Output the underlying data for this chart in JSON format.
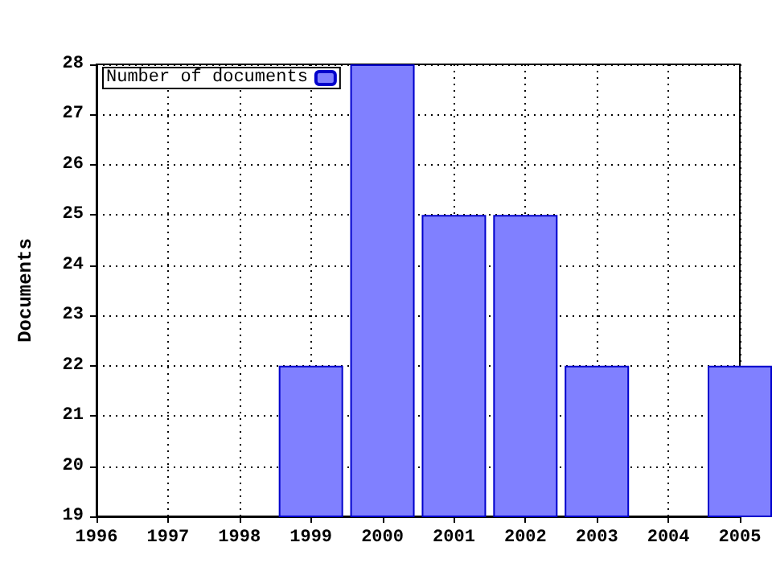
{
  "chart_data": {
    "type": "bar",
    "ylabel": "Documents",
    "x": [
      1999,
      2000,
      2001,
      2002,
      2003,
      2005
    ],
    "series": [
      {
        "name": "Number of documents",
        "color": "#8080ff",
        "values": [
          22,
          28,
          25,
          25,
          22,
          22
        ]
      }
    ],
    "xlim": [
      1996,
      2005
    ],
    "xticks": [
      1996,
      1997,
      1998,
      1999,
      2000,
      2001,
      2002,
      2003,
      2004,
      2005
    ],
    "ylim": [
      19,
      28
    ],
    "yticks": [
      19,
      20,
      21,
      22,
      23,
      24,
      25,
      26,
      27,
      28
    ],
    "grid": true,
    "legend": "top left"
  }
}
